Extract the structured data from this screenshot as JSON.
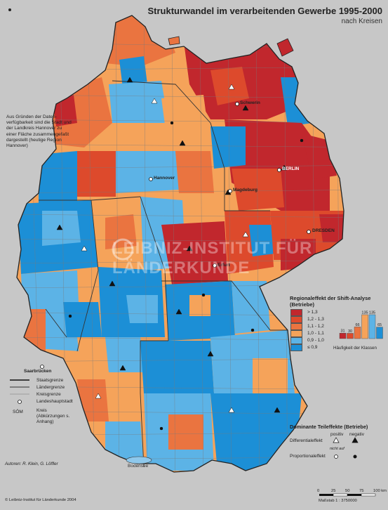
{
  "title": "Strukturwandel im verarbeitenden Gewerbe 1995-2000",
  "subtitle": "nach Kreisen",
  "note": "Aus Gründen der Daten-verfügbarkeit sind die Stadt und der Landkreis Hannover zu einer Fläche zusammengefaßt dargestellt (heutige Region Hannover)",
  "boundaries_legend": {
    "state": "Staatsgrenze",
    "land": "Ländergrenze",
    "kreis": "Kreisgrenze",
    "capital": "Landeshauptstadt",
    "kreis_abbr_sample": "SÖM",
    "kreis_abbr": "Kreis (Abkürzungen s. Anhang)"
  },
  "legend": {
    "title": "Regionaleffekt der Shift-Analyse (Betriebe)",
    "classes": [
      {
        "label": "> 1,3",
        "color": "#c1272d",
        "count": 31
      },
      {
        "label": "1,2 - 1,3",
        "color": "#dd4a2c",
        "count": 30
      },
      {
        "label": "1,1 - 1,2",
        "color": "#ea7440",
        "count": 66
      },
      {
        "label": "1,0 - 1,1",
        "color": "#f5a35a",
        "count": 135
      },
      {
        "label": "0,9 - 1,0",
        "color": "#5cb3e6",
        "count": 135
      },
      {
        "label": "≤ 0,9",
        "color": "#1c8fd6",
        "count": 65
      }
    ],
    "hist_caption": "Häufigkeit der Klassen"
  },
  "dominant": {
    "title": "Dominante Teileffekte (Betriebe)",
    "positive": "positiv",
    "negative": "negativ",
    "differential": "Differentialeffekt",
    "proportional": "Proportionaleffekt",
    "absent": "nicht auf"
  },
  "places": {
    "schwerin": "Schwerin",
    "hannover": "Hannover",
    "berlin": "BERLIN",
    "magdeburg": "Magdeburg",
    "dresden": "DRESDEN",
    "erfurt": "Erfurt",
    "bodensee": "Bodensee",
    "saarbruecken": "Saarbrücken"
  },
  "author": "Autoren: R. Klein, G. Löffler",
  "publisher": "© Leibniz-Institut für Länderkunde 2004",
  "scale": {
    "ticks": [
      "0",
      "25",
      "50",
      "75",
      "100 km"
    ],
    "label": "Maßstab 1 : 3750000"
  },
  "watermark": "LEIBNIZ-INSTITUT FÜR LÄNDERKUNDE",
  "colors": {
    "background": "#c7c7c7",
    "outline": "#444444"
  }
}
